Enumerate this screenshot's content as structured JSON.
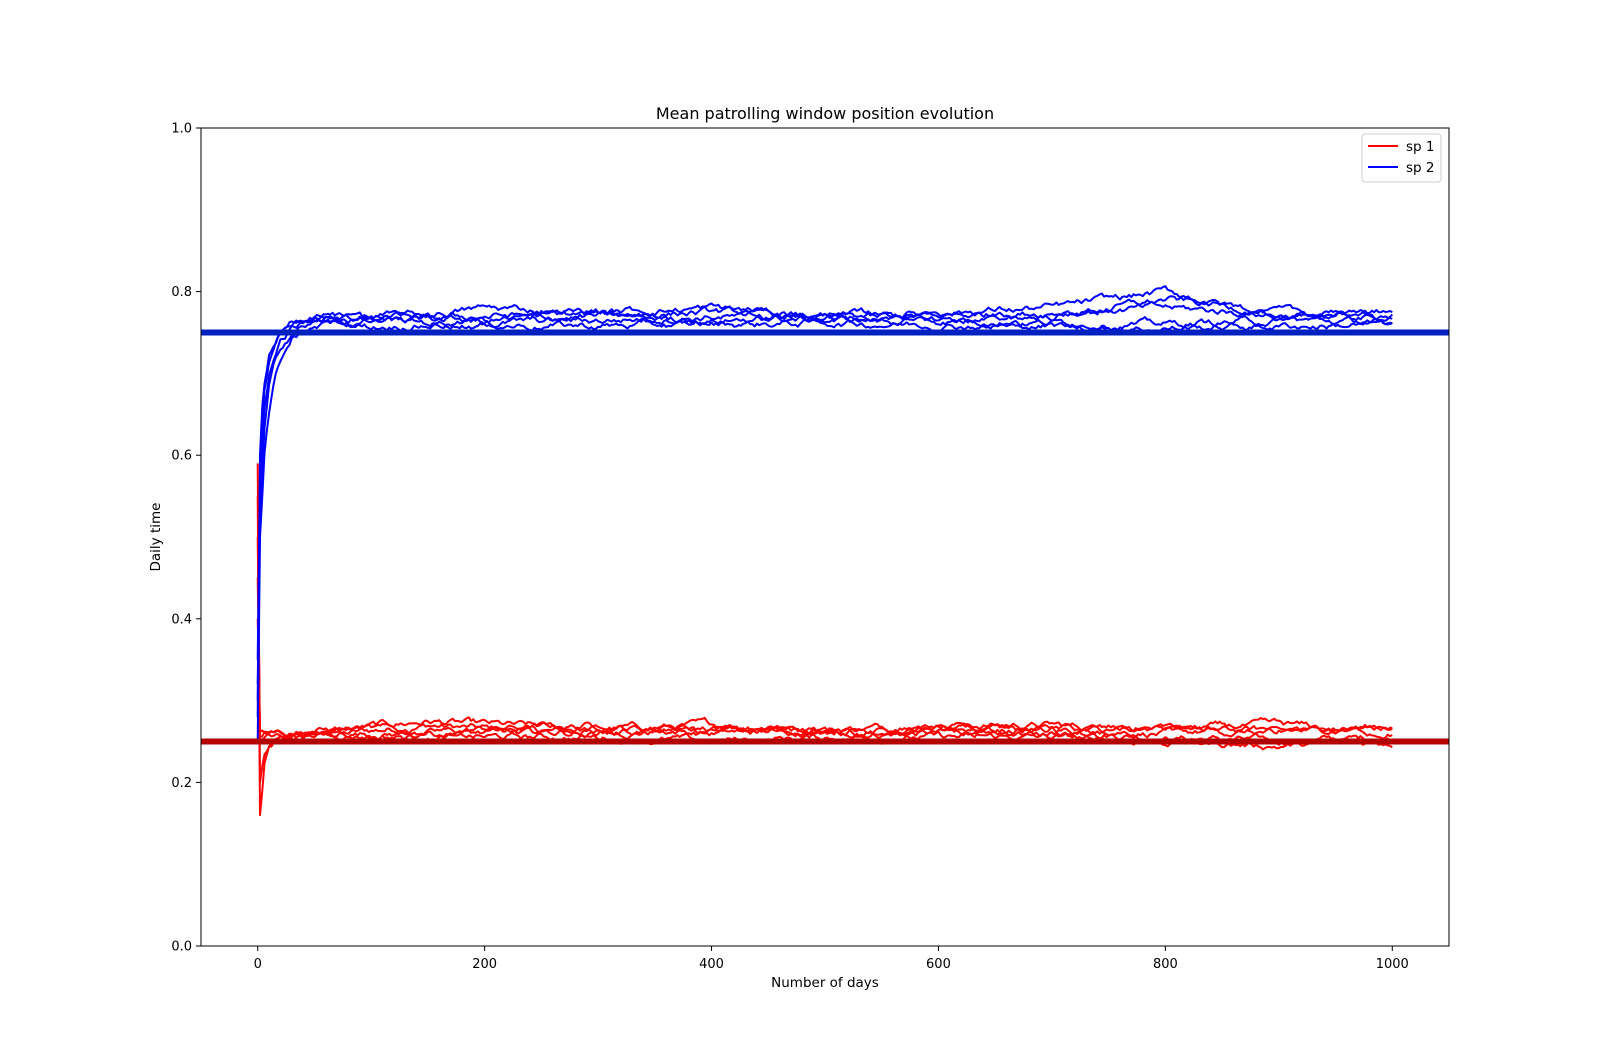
{
  "chart_data": {
    "type": "line",
    "title": "Mean patrolling window position evolution",
    "xlabel": "Number of days",
    "ylabel": "Daily time",
    "xlim": [
      -50,
      1050
    ],
    "ylim": [
      0.0,
      1.0
    ],
    "xticks": [
      "0",
      "200",
      "400",
      "600",
      "800",
      "1000"
    ],
    "xtick_values": [
      0,
      200,
      400,
      600,
      800,
      1000
    ],
    "yticks": [
      "0.0",
      "0.2",
      "0.4",
      "0.6",
      "0.8",
      "1.0"
    ],
    "ytick_values": [
      0.0,
      0.2,
      0.4,
      0.6,
      0.8,
      1.0
    ],
    "grid": false,
    "legend_position": "top-right",
    "legend": [
      {
        "label": "sp 1",
        "color": "#ff0000"
      },
      {
        "label": "sp 2",
        "color": "#0000ff"
      }
    ],
    "reference_lines": [
      {
        "y": 0.25,
        "color": "#b30000"
      },
      {
        "y": 0.75,
        "color": "#0020c0"
      }
    ],
    "series": [
      {
        "group": "sp 1",
        "color": "#ff0000",
        "x": [
          0,
          2,
          6,
          10,
          20,
          40,
          80,
          150,
          200,
          300,
          400,
          500,
          600,
          700,
          800,
          900,
          1000
        ],
        "values": [
          0.55,
          0.16,
          0.22,
          0.24,
          0.25,
          0.255,
          0.26,
          0.27,
          0.265,
          0.26,
          0.265,
          0.26,
          0.26,
          0.265,
          0.255,
          0.25,
          0.255
        ]
      },
      {
        "group": "sp 1",
        "color": "#ff0000",
        "x": [
          0,
          2,
          6,
          10,
          20,
          40,
          80,
          150,
          200,
          300,
          400,
          500,
          600,
          700,
          800,
          900,
          1000
        ],
        "values": [
          0.59,
          0.2,
          0.24,
          0.25,
          0.255,
          0.26,
          0.265,
          0.275,
          0.27,
          0.265,
          0.27,
          0.265,
          0.27,
          0.27,
          0.26,
          0.265,
          0.265
        ]
      },
      {
        "group": "sp 1",
        "color": "#ff0000",
        "x": [
          0,
          2,
          6,
          10,
          20,
          40,
          80,
          150,
          200,
          300,
          400,
          500,
          600,
          700,
          800,
          900,
          1000
        ],
        "values": [
          0.5,
          0.25,
          0.255,
          0.258,
          0.26,
          0.258,
          0.26,
          0.26,
          0.265,
          0.27,
          0.26,
          0.265,
          0.265,
          0.26,
          0.265,
          0.26,
          0.27
        ]
      },
      {
        "group": "sp 1",
        "color": "#ff0000",
        "x": [
          0,
          2,
          6,
          10,
          20,
          40,
          80,
          150,
          200,
          300,
          400,
          500,
          600,
          700,
          800,
          900,
          1000
        ],
        "values": [
          0.45,
          0.255,
          0.258,
          0.26,
          0.262,
          0.26,
          0.258,
          0.255,
          0.255,
          0.255,
          0.25,
          0.255,
          0.255,
          0.255,
          0.25,
          0.245,
          0.25
        ]
      },
      {
        "group": "sp 1",
        "color": "#ff0000",
        "x": [
          0,
          2,
          6,
          10,
          20,
          40,
          80,
          150,
          200,
          300,
          400,
          500,
          600,
          700,
          800,
          900,
          1000
        ],
        "values": [
          0.4,
          0.262,
          0.265,
          0.262,
          0.26,
          0.262,
          0.265,
          0.262,
          0.26,
          0.262,
          0.265,
          0.262,
          0.262,
          0.265,
          0.265,
          0.27,
          0.26
        ]
      },
      {
        "group": "sp 2",
        "color": "#0000ff",
        "x": [
          0,
          2,
          4,
          6,
          10,
          15,
          20,
          30,
          40,
          60,
          100,
          150,
          200,
          300,
          400,
          500,
          600,
          700,
          800,
          900,
          1000
        ],
        "values": [
          0.25,
          0.5,
          0.55,
          0.6,
          0.65,
          0.69,
          0.71,
          0.74,
          0.75,
          0.76,
          0.762,
          0.765,
          0.77,
          0.772,
          0.775,
          0.768,
          0.77,
          0.775,
          0.78,
          0.772,
          0.77
        ]
      },
      {
        "group": "sp 2",
        "color": "#0000ff",
        "x": [
          0,
          2,
          4,
          6,
          10,
          15,
          20,
          30,
          40,
          60,
          100,
          150,
          200,
          300,
          400,
          500,
          600,
          700,
          800,
          900,
          1000
        ],
        "values": [
          0.3,
          0.56,
          0.62,
          0.66,
          0.7,
          0.72,
          0.74,
          0.755,
          0.76,
          0.765,
          0.758,
          0.76,
          0.762,
          0.765,
          0.77,
          0.765,
          0.765,
          0.77,
          0.79,
          0.775,
          0.765
        ]
      },
      {
        "group": "sp 2",
        "color": "#0000ff",
        "x": [
          0,
          2,
          4,
          6,
          10,
          15,
          20,
          30,
          40,
          60,
          100,
          150,
          200,
          300,
          400,
          500,
          600,
          700,
          800,
          900,
          1000
        ],
        "values": [
          0.35,
          0.58,
          0.64,
          0.68,
          0.71,
          0.73,
          0.745,
          0.76,
          0.765,
          0.77,
          0.77,
          0.768,
          0.765,
          0.77,
          0.765,
          0.77,
          0.765,
          0.762,
          0.76,
          0.765,
          0.762
        ]
      },
      {
        "group": "sp 2",
        "color": "#0000ff",
        "x": [
          0,
          2,
          4,
          6,
          10,
          15,
          20,
          30,
          40,
          60,
          100,
          150,
          200,
          300,
          400,
          500,
          600,
          700,
          800,
          900,
          1000
        ],
        "values": [
          0.28,
          0.6,
          0.66,
          0.69,
          0.725,
          0.74,
          0.755,
          0.765,
          0.768,
          0.772,
          0.765,
          0.762,
          0.76,
          0.758,
          0.76,
          0.762,
          0.76,
          0.758,
          0.755,
          0.758,
          0.76
        ]
      },
      {
        "group": "sp 2",
        "color": "#0000ff",
        "x": [
          0,
          2,
          4,
          6,
          10,
          15,
          20,
          30,
          40,
          60,
          100,
          150,
          200,
          300,
          400,
          500,
          600,
          700,
          800,
          900,
          1000
        ],
        "values": [
          0.32,
          0.52,
          0.58,
          0.63,
          0.68,
          0.71,
          0.73,
          0.75,
          0.758,
          0.765,
          0.768,
          0.772,
          0.78,
          0.775,
          0.78,
          0.77,
          0.775,
          0.78,
          0.8,
          0.77,
          0.775
        ]
      }
    ]
  }
}
